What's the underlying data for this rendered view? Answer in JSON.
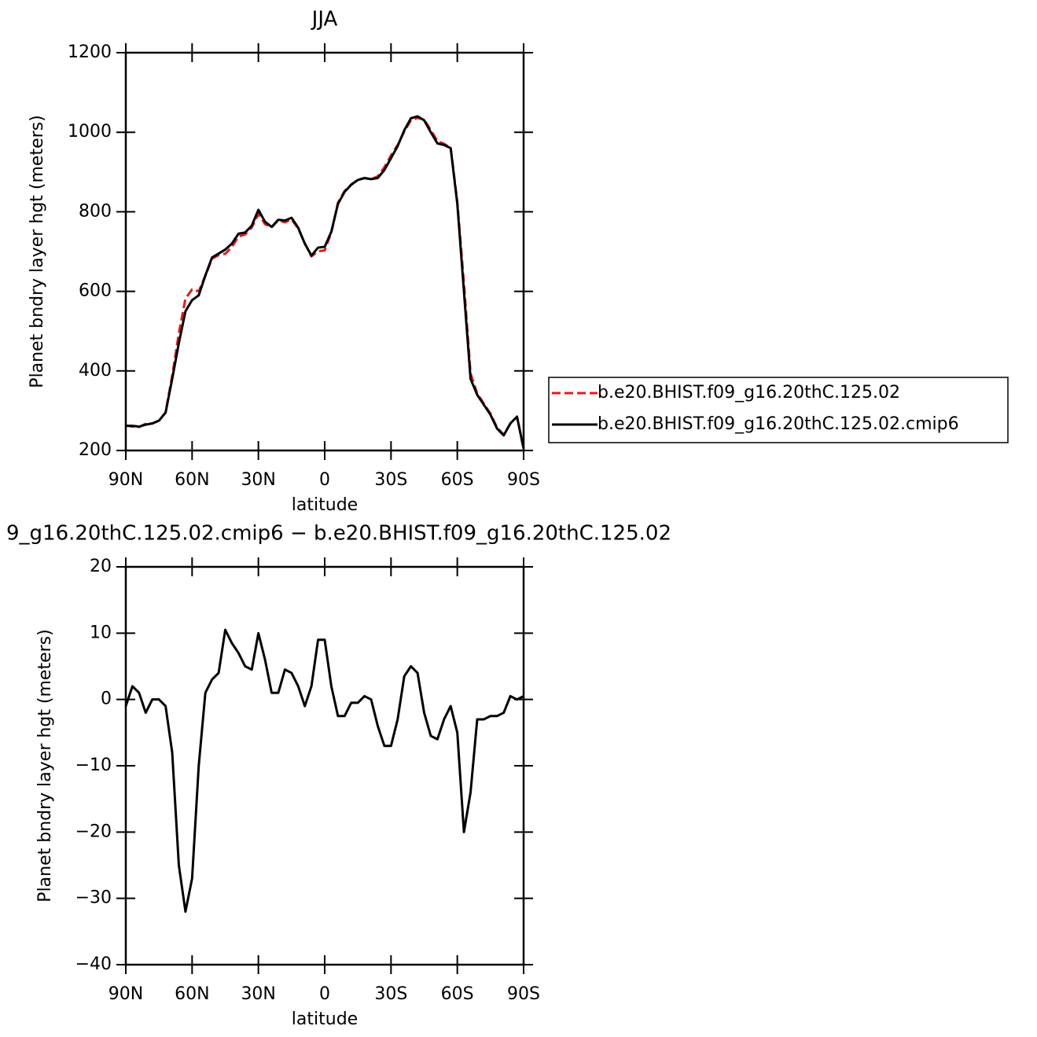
{
  "chart_data": [
    {
      "type": "line",
      "title": "JJA",
      "xlabel": "latitude",
      "ylabel": "Planet bndry layer hgt (meters)",
      "x": [
        90,
        87,
        84,
        81,
        78,
        75,
        72,
        69,
        66,
        63,
        60,
        57,
        54,
        51,
        48,
        45,
        42,
        39,
        36,
        33,
        30,
        27,
        24,
        21,
        18,
        15,
        12,
        9,
        6,
        3,
        0,
        -3,
        -6,
        -9,
        -12,
        -15,
        -18,
        -21,
        -24,
        -27,
        -30,
        -33,
        -36,
        -39,
        -42,
        -45,
        -48,
        -51,
        -54,
        -57,
        -60,
        -63,
        -66,
        -69,
        -72,
        -75,
        -78,
        -81,
        -84,
        -87,
        -90
      ],
      "series": [
        {
          "name": "b.e20.BHIST.f09_g16.20thC.125.02",
          "color": "#e41a1c",
          "dashed": true,
          "values": [
            263,
            260,
            259,
            267,
            268,
            275,
            296,
            388,
            495,
            582,
            605,
            600,
            639,
            682,
            691,
            694.5,
            711.5,
            738,
            743,
            760.5,
            795,
            769,
            761,
            779,
            773.5,
            781,
            758,
            721,
            688,
            701,
            703,
            748,
            822.5,
            852.5,
            868.5,
            880.5,
            884.5,
            882,
            889,
            912,
            942,
            968,
            1001.5,
            1030,
            1036,
            1032,
            1005.5,
            978,
            971,
            961,
            825,
            620,
            394,
            343,
            318,
            292.5,
            257.5,
            240,
            267.5,
            285,
            204.5
          ]
        },
        {
          "name": "b.e20.BHIST.f09_g16.20thC.125.02.cmip6",
          "color": "#000000",
          "dashed": false,
          "values": [
            262,
            262,
            260,
            265,
            268,
            275,
            295,
            380,
            470,
            550,
            578,
            590,
            640,
            685,
            695,
            705,
            720,
            745,
            748,
            765,
            805,
            775,
            762,
            780,
            778,
            785,
            760,
            720,
            690,
            710,
            712,
            750,
            820,
            850,
            868,
            880,
            885,
            882,
            885,
            905,
            935,
            965,
            1005,
            1035,
            1040,
            1030,
            1000,
            972,
            968,
            960,
            820,
            600,
            380,
            340,
            315,
            290,
            255,
            238,
            268,
            285,
            205
          ]
        }
      ],
      "xlim": [
        90,
        -90
      ],
      "xticks": [
        {
          "value": 90,
          "label": "90N"
        },
        {
          "value": 60,
          "label": "60N"
        },
        {
          "value": 30,
          "label": "30N"
        },
        0,
        {
          "value": -30,
          "label": "30S"
        },
        {
          "value": -60,
          "label": "60S"
        },
        {
          "value": -90,
          "label": "90S"
        }
      ],
      "ylim": [
        200,
        1200
      ],
      "yticks": [
        200,
        400,
        600,
        800,
        1000,
        1200
      ],
      "legend": "right"
    },
    {
      "type": "line",
      "title": "9_g16.20thC.125.02.cmip6 − b.e20.BHIST.f09_g16.20thC.125.02",
      "xlabel": "latitude",
      "ylabel": "Planet bndry layer hgt (meters)",
      "x": [
        90,
        87,
        84,
        81,
        78,
        75,
        72,
        69,
        66,
        63,
        60,
        57,
        54,
        51,
        48,
        45,
        42,
        39,
        36,
        33,
        30,
        27,
        24,
        21,
        18,
        15,
        12,
        9,
        6,
        3,
        0,
        -3,
        -6,
        -9,
        -12,
        -15,
        -18,
        -21,
        -24,
        -27,
        -30,
        -33,
        -36,
        -39,
        -42,
        -45,
        -48,
        -51,
        -54,
        -57,
        -60,
        -63,
        -66,
        -69,
        -72,
        -75,
        -78,
        -81,
        -84,
        -87,
        -90
      ],
      "color": "#000000",
      "values": [
        -1,
        2,
        1,
        -2,
        0,
        0,
        -1,
        -8,
        -25,
        -32,
        -27,
        -10,
        1,
        3,
        4,
        10.5,
        8.5,
        7,
        5,
        4.5,
        10,
        6,
        1,
        1,
        4.5,
        4,
        2,
        -1,
        2,
        9,
        9,
        2,
        -2.5,
        -2.5,
        -0.5,
        -0.5,
        0.5,
        0,
        -4,
        -7,
        -7,
        -3,
        3.5,
        5,
        4,
        -2,
        -5.5,
        -6,
        -3,
        -1,
        -5,
        -20,
        -14,
        -3,
        -3,
        -2.5,
        -2.5,
        -2,
        0.5,
        0,
        0.5
      ],
      "xlim": [
        90,
        -90
      ],
      "xticks": [
        {
          "value": 90,
          "label": "90N"
        },
        {
          "value": 60,
          "label": "60N"
        },
        {
          "value": 30,
          "label": "30N"
        },
        0,
        {
          "value": -30,
          "label": "30S"
        },
        {
          "value": -60,
          "label": "60S"
        },
        {
          "value": -90,
          "label": "90S"
        }
      ],
      "ylim": [
        -40,
        20
      ],
      "yticks": [
        {
          "value": -40,
          "label": "−40"
        },
        {
          "value": -30,
          "label": "−30"
        },
        {
          "value": -20,
          "label": "−20"
        },
        {
          "value": -10,
          "label": "−10"
        },
        0,
        10,
        20
      ]
    }
  ]
}
